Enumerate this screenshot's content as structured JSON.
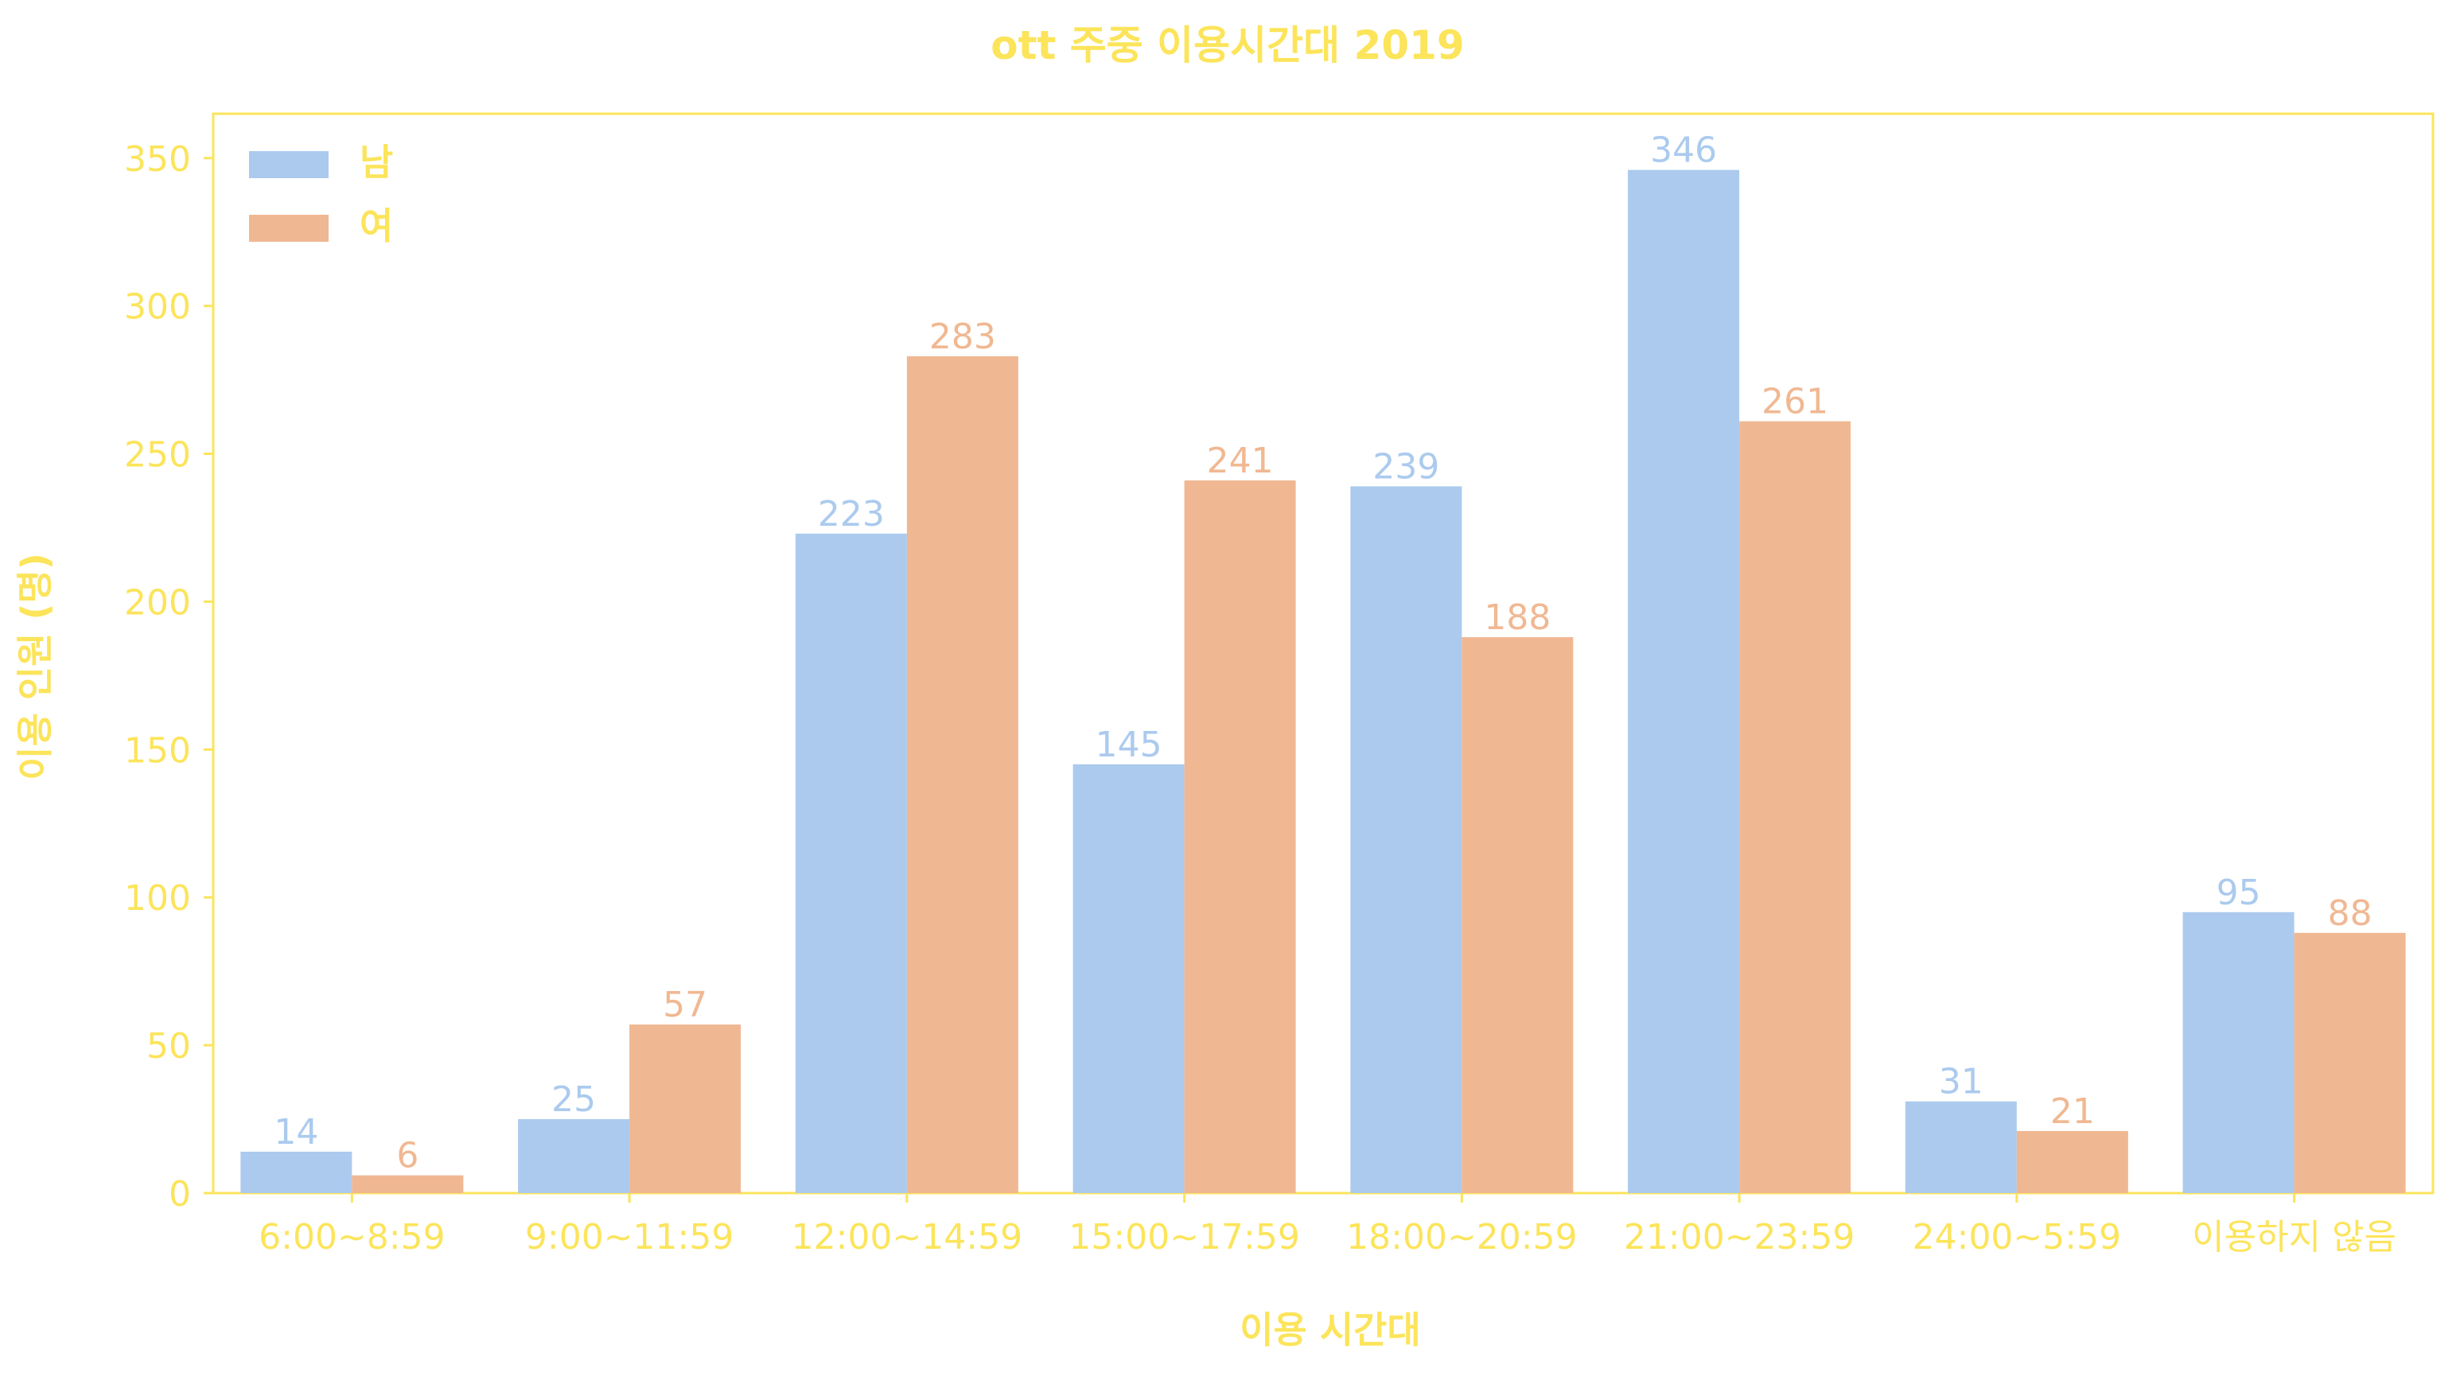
{
  "colors": {
    "accent_text": "#FCE45B",
    "male": "#ABCAEE",
    "female": "#F0B892",
    "frame": "#FCE45B",
    "background": "#FFFFFF"
  },
  "chart_data": {
    "type": "bar",
    "title": "ott 주중 이용시간대 2019",
    "xlabel": "이용 시간대",
    "ylabel": "이용 인원 (명)",
    "categories": [
      "6:00~8:59",
      "9:00~11:59",
      "12:00~14:59",
      "15:00~17:59",
      "18:00~20:59",
      "21:00~23:59",
      "24:00~5:59",
      "이용하지 않음"
    ],
    "series": [
      {
        "name": "남",
        "values": [
          14,
          25,
          223,
          145,
          239,
          346,
          31,
          95
        ]
      },
      {
        "name": "여",
        "values": [
          6,
          57,
          283,
          241,
          188,
          261,
          21,
          88
        ]
      }
    ],
    "ylim": [
      0,
      365
    ],
    "yticks": [
      0,
      50,
      100,
      150,
      200,
      250,
      300,
      350
    ],
    "legend_position": "top-left",
    "grid": false,
    "data_labels": true
  }
}
